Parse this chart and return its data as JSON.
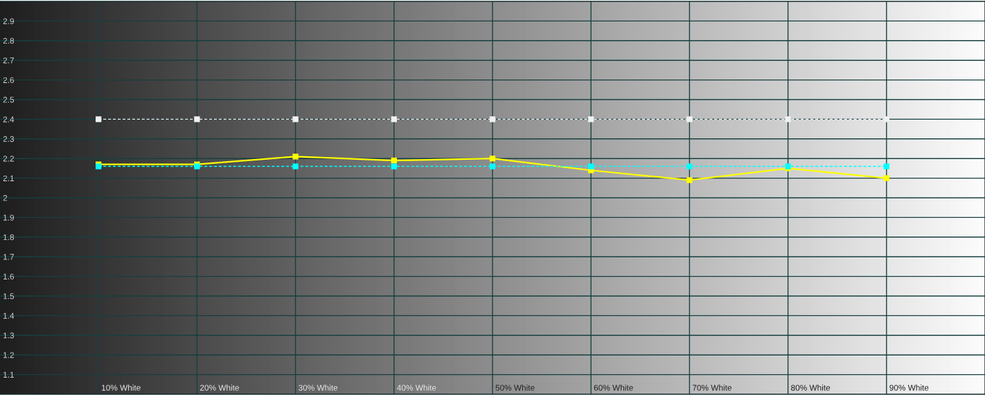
{
  "chart_data": {
    "type": "line",
    "categories": [
      "10% White",
      "20% White",
      "30% White",
      "40% White",
      "50% White",
      "60% White",
      "70% White",
      "80% White",
      "90% White"
    ],
    "series": [
      {
        "color": "#f0f0f0",
        "line_style": "dashed",
        "values": [
          2.4,
          2.4,
          2.4,
          2.4,
          2.4,
          2.4,
          2.4,
          2.4,
          2.4
        ]
      },
      {
        "color": "#ffff00",
        "line_style": "solid",
        "values": [
          2.17,
          2.17,
          2.21,
          2.19,
          2.2,
          2.14,
          2.09,
          2.15,
          2.1
        ]
      },
      {
        "color": "#00ffff",
        "line_style": "dashed",
        "values": [
          2.16,
          2.16,
          2.16,
          2.16,
          2.16,
          2.16,
          2.16,
          2.16,
          2.16
        ]
      }
    ],
    "ylim": [
      1,
      3
    ],
    "yticks": [
      1.1,
      1.2,
      1.3,
      1.4,
      1.5,
      1.6,
      1.7,
      1.8,
      1.9,
      2,
      2.1,
      2.2,
      2.3,
      2.4,
      2.5,
      2.6,
      2.7,
      2.8,
      2.9
    ],
    "grid": true,
    "marker": "square"
  }
}
